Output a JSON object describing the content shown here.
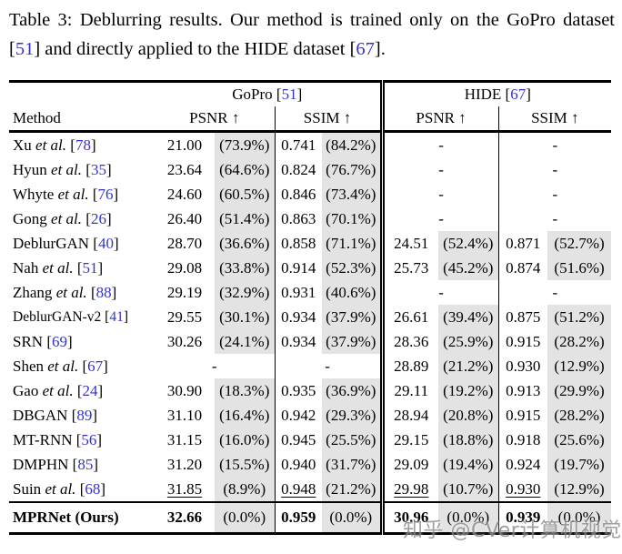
{
  "colors": {
    "text": "#000000",
    "rule": "#000000",
    "citation": "#3333cc",
    "shade": "#e3e3e3",
    "watermark": "#8c8c8c"
  },
  "caption": {
    "segments": [
      {
        "t": "Table 3:  Deblurring results.  Our method is trained only on the GoPro dataset [",
        "s": "n"
      },
      {
        "t": "51",
        "s": "c"
      },
      {
        "t": "] and directly applied to the HIDE dataset [",
        "s": "n"
      },
      {
        "t": "67",
        "s": "c"
      },
      {
        "t": "].",
        "s": "n"
      }
    ]
  },
  "header": {
    "method_label": "Method",
    "psnr_label": "PSNR ↑",
    "ssim_label": "SSIM ↑",
    "groups": [
      {
        "segments": [
          {
            "t": "GoPro [",
            "s": "n"
          },
          {
            "t": "51",
            "s": "c"
          },
          {
            "t": "]",
            "s": "n"
          }
        ]
      },
      {
        "segments": [
          {
            "t": "HIDE [",
            "s": "n"
          },
          {
            "t": "67",
            "s": "c"
          },
          {
            "t": "]",
            "s": "n"
          }
        ]
      }
    ]
  },
  "table": {
    "missing_marker": "-",
    "rows": [
      {
        "method": [
          {
            "t": "Xu ",
            "s": "n"
          },
          {
            "t": "et al.",
            "s": "i"
          },
          {
            "t": " [",
            "s": "n"
          },
          {
            "t": "78",
            "s": "c"
          },
          {
            "t": "]",
            "s": "n"
          }
        ],
        "cells": {
          "gopro_psnr": {
            "v": "21.00",
            "p": "(73.9%)"
          },
          "gopro_ssim": {
            "v": "0.741",
            "p": "(84.2%)"
          },
          "hide_psnr": "-",
          "hide_ssim": "-"
        }
      },
      {
        "method": [
          {
            "t": "Hyun ",
            "s": "n"
          },
          {
            "t": "et al.",
            "s": "i"
          },
          {
            "t": " [",
            "s": "n"
          },
          {
            "t": "35",
            "s": "c"
          },
          {
            "t": "]",
            "s": "n"
          }
        ],
        "cells": {
          "gopro_psnr": {
            "v": "23.64",
            "p": "(64.6%)"
          },
          "gopro_ssim": {
            "v": "0.824",
            "p": "(76.7%)"
          },
          "hide_psnr": "-",
          "hide_ssim": "-"
        }
      },
      {
        "method": [
          {
            "t": "Whyte ",
            "s": "n"
          },
          {
            "t": "et al.",
            "s": "i"
          },
          {
            "t": " [",
            "s": "n"
          },
          {
            "t": "76",
            "s": "c"
          },
          {
            "t": "]",
            "s": "n"
          }
        ],
        "cells": {
          "gopro_psnr": {
            "v": "24.60",
            "p": "(60.5%)"
          },
          "gopro_ssim": {
            "v": "0.846",
            "p": "(73.4%)"
          },
          "hide_psnr": "-",
          "hide_ssim": "-"
        }
      },
      {
        "method": [
          {
            "t": "Gong ",
            "s": "n"
          },
          {
            "t": "et al.",
            "s": "i"
          },
          {
            "t": " [",
            "s": "n"
          },
          {
            "t": "26",
            "s": "c"
          },
          {
            "t": "]",
            "s": "n"
          }
        ],
        "cells": {
          "gopro_psnr": {
            "v": "26.40",
            "p": "(51.4%)"
          },
          "gopro_ssim": {
            "v": "0.863",
            "p": "(70.1%)"
          },
          "hide_psnr": "-",
          "hide_ssim": "-"
        }
      },
      {
        "method": [
          {
            "t": "DeblurGAN [",
            "s": "n"
          },
          {
            "t": "40",
            "s": "c"
          },
          {
            "t": "]",
            "s": "n"
          }
        ],
        "cells": {
          "gopro_psnr": {
            "v": "28.70",
            "p": "(36.6%)"
          },
          "gopro_ssim": {
            "v": "0.858",
            "p": "(71.1%)"
          },
          "hide_psnr": {
            "v": "24.51",
            "p": "(52.4%)"
          },
          "hide_ssim": {
            "v": "0.871",
            "p": "(52.7%)"
          }
        }
      },
      {
        "method": [
          {
            "t": "Nah ",
            "s": "n"
          },
          {
            "t": "et al.",
            "s": "i"
          },
          {
            "t": " [",
            "s": "n"
          },
          {
            "t": "51",
            "s": "c"
          },
          {
            "t": "]",
            "s": "n"
          }
        ],
        "cells": {
          "gopro_psnr": {
            "v": "29.08",
            "p": "(33.8%)"
          },
          "gopro_ssim": {
            "v": "0.914",
            "p": "(52.3%)"
          },
          "hide_psnr": {
            "v": "25.73",
            "p": "(45.2%)"
          },
          "hide_ssim": {
            "v": "0.874",
            "p": "(51.6%)"
          }
        }
      },
      {
        "method": [
          {
            "t": "Zhang ",
            "s": "n"
          },
          {
            "t": "et al.",
            "s": "i"
          },
          {
            "t": " [",
            "s": "n"
          },
          {
            "t": "88",
            "s": "c"
          },
          {
            "t": "]",
            "s": "n"
          }
        ],
        "cells": {
          "gopro_psnr": {
            "v": "29.19",
            "p": "(32.9%)"
          },
          "gopro_ssim": {
            "v": "0.931",
            "p": "(40.6%)"
          },
          "hide_psnr": "-",
          "hide_ssim": "-"
        }
      },
      {
        "method": [
          {
            "t": "DeblurGAN-v2 [",
            "s": "n"
          },
          {
            "t": "41",
            "s": "c"
          },
          {
            "t": "]",
            "s": "n"
          }
        ],
        "compact": true,
        "cells": {
          "gopro_psnr": {
            "v": "29.55",
            "p": "(30.1%)"
          },
          "gopro_ssim": {
            "v": "0.934",
            "p": "(37.9%)"
          },
          "hide_psnr": {
            "v": "26.61",
            "p": "(39.4%)"
          },
          "hide_ssim": {
            "v": "0.875",
            "p": "(51.2%)"
          }
        }
      },
      {
        "method": [
          {
            "t": "SRN [",
            "s": "n"
          },
          {
            "t": "69",
            "s": "c"
          },
          {
            "t": "]",
            "s": "n"
          }
        ],
        "cells": {
          "gopro_psnr": {
            "v": "30.26",
            "p": "(24.1%)"
          },
          "gopro_ssim": {
            "v": "0.934",
            "p": "(37.9%)"
          },
          "hide_psnr": {
            "v": "28.36",
            "p": "(25.9%)"
          },
          "hide_ssim": {
            "v": "0.915",
            "p": "(28.2%)"
          }
        }
      },
      {
        "method": [
          {
            "t": "Shen ",
            "s": "n"
          },
          {
            "t": "et al.",
            "s": "i"
          },
          {
            "t": " [",
            "s": "n"
          },
          {
            "t": "67",
            "s": "c"
          },
          {
            "t": "]",
            "s": "n"
          }
        ],
        "cells": {
          "gopro_psnr": "-",
          "gopro_ssim": "-",
          "hide_psnr": {
            "v": "28.89",
            "p": "(21.2%)"
          },
          "hide_ssim": {
            "v": "0.930",
            "p": "(12.9%)"
          }
        }
      },
      {
        "method": [
          {
            "t": "Gao ",
            "s": "n"
          },
          {
            "t": "et al.",
            "s": "i"
          },
          {
            "t": " [",
            "s": "n"
          },
          {
            "t": "24",
            "s": "c"
          },
          {
            "t": "]",
            "s": "n"
          }
        ],
        "cells": {
          "gopro_psnr": {
            "v": "30.90",
            "p": "(18.3%)"
          },
          "gopro_ssim": {
            "v": "0.935",
            "p": "(36.9%)"
          },
          "hide_psnr": {
            "v": "29.11",
            "p": "(19.2%)"
          },
          "hide_ssim": {
            "v": "0.913",
            "p": "(29.9%)"
          }
        }
      },
      {
        "method": [
          {
            "t": "DBGAN [",
            "s": "n"
          },
          {
            "t": "89",
            "s": "c"
          },
          {
            "t": "]",
            "s": "n"
          }
        ],
        "cells": {
          "gopro_psnr": {
            "v": "31.10",
            "p": "(16.4%)"
          },
          "gopro_ssim": {
            "v": "0.942",
            "p": "(29.3%)"
          },
          "hide_psnr": {
            "v": "28.94",
            "p": "(20.8%)"
          },
          "hide_ssim": {
            "v": "0.915",
            "p": "(28.2%)"
          }
        }
      },
      {
        "method": [
          {
            "t": "MT-RNN [",
            "s": "n"
          },
          {
            "t": "56",
            "s": "c"
          },
          {
            "t": "]",
            "s": "n"
          }
        ],
        "cells": {
          "gopro_psnr": {
            "v": "31.15",
            "p": "(16.0%)"
          },
          "gopro_ssim": {
            "v": "0.945",
            "p": "(25.5%)"
          },
          "hide_psnr": {
            "v": "29.15",
            "p": "(18.8%)"
          },
          "hide_ssim": {
            "v": "0.918",
            "p": "(25.6%)"
          }
        }
      },
      {
        "method": [
          {
            "t": "DMPHN [",
            "s": "n"
          },
          {
            "t": "85",
            "s": "c"
          },
          {
            "t": "]",
            "s": "n"
          }
        ],
        "cells": {
          "gopro_psnr": {
            "v": "31.20",
            "p": "(15.5%)"
          },
          "gopro_ssim": {
            "v": "0.940",
            "p": "(31.7%)"
          },
          "hide_psnr": {
            "v": "29.09",
            "p": "(19.4%)"
          },
          "hide_ssim": {
            "v": "0.924",
            "p": "(19.7%)"
          }
        }
      },
      {
        "method": [
          {
            "t": "Suin ",
            "s": "n"
          },
          {
            "t": "et al.",
            "s": "i"
          },
          {
            "t": " [",
            "s": "n"
          },
          {
            "t": "68",
            "s": "c"
          },
          {
            "t": "]",
            "s": "n"
          }
        ],
        "underline": true,
        "cells": {
          "gopro_psnr": {
            "v": "31.85",
            "p": "(8.9%)"
          },
          "gopro_ssim": {
            "v": "0.948",
            "p": "(21.2%)"
          },
          "hide_psnr": {
            "v": "29.98",
            "p": "(10.7%)"
          },
          "hide_ssim": {
            "v": "0.930",
            "p": "(12.9%)"
          }
        }
      },
      {
        "method": [
          {
            "t": "MPRNet (Ours)",
            "s": "b"
          }
        ],
        "bold": true,
        "rule_above": true,
        "cells": {
          "gopro_psnr": {
            "v": "32.66",
            "p": "(0.0%)"
          },
          "gopro_ssim": {
            "v": "0.959",
            "p": "(0.0%)"
          },
          "hide_psnr": {
            "v": "30.96",
            "p": "(0.0%)"
          },
          "hide_ssim": {
            "v": "0.939",
            "p": "(0.0%)"
          }
        }
      }
    ]
  },
  "watermark": {
    "text": "知乎 @CVer计算机视觉"
  }
}
